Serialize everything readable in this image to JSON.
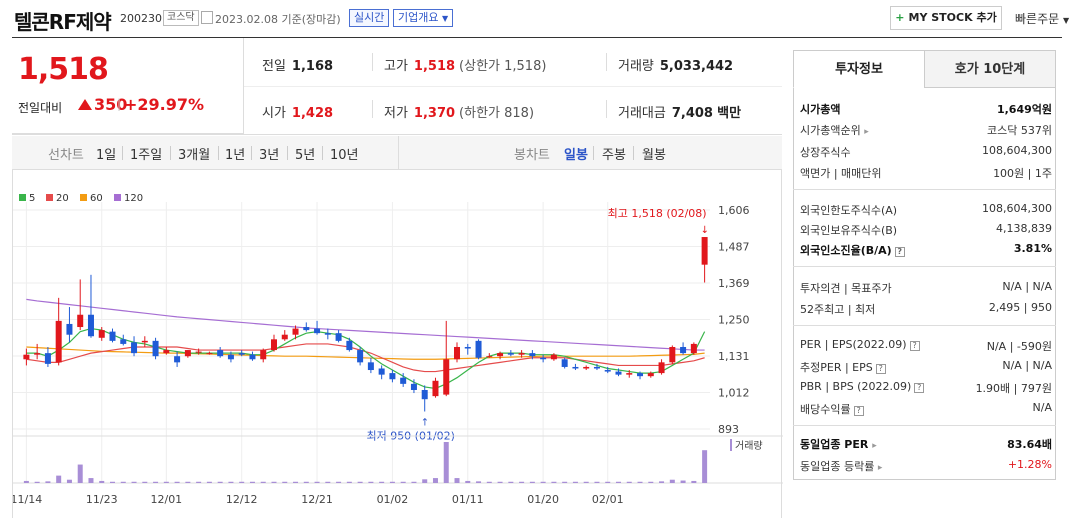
{
  "header": {
    "title": "텔콘RF제약",
    "code": "200230",
    "market": "코스닥",
    "date": "2023.02.08 기준(장마감)",
    "realtime": "실시간",
    "company_overview": "기업개요",
    "mystock": "MY STOCK 추가",
    "quick_order": "빠른주문"
  },
  "quote": {
    "price": "1,518",
    "change_label": "전일대비",
    "change": "350",
    "change_pct": "+29.97%",
    "prev_label": "전일",
    "prev": "1,168",
    "high_label": "고가",
    "high": "1,518",
    "high_sub": "(상한가 1,518)",
    "volume_label": "거래량",
    "volume": "5,033,442",
    "open_label": "시가",
    "open": "1,428",
    "low_label": "저가",
    "low": "1,370",
    "low_sub": "(하한가 818)",
    "amount_label": "거래대금",
    "amount": "7,408",
    "amount_unit": "백만"
  },
  "period_bar": {
    "line_label": "선차트",
    "line_items": [
      "1일",
      "1주일",
      "3개월",
      "1년",
      "3년",
      "5년",
      "10년"
    ],
    "candle_label": "봉차트",
    "candle_items": [
      "일봉",
      "주봉",
      "월봉"
    ],
    "active": "일봉"
  },
  "colors": {
    "up": "#e1171c",
    "down": "#1f5bd6",
    "ma5": "#39b54a",
    "ma20": "#e54b4b",
    "ma60": "#f39c12",
    "ma120": "#a66ed3",
    "volume": "#a88ed6"
  },
  "chart_data": {
    "type": "candlestick",
    "legend": [
      "5",
      "20",
      "60",
      "120"
    ],
    "y_ticks": [
      "1,606",
      "1,487",
      "1,369",
      "1,250",
      "1,131",
      "1,012",
      "893"
    ],
    "ylim": [
      893,
      1606
    ],
    "x_labels": [
      "11/14",
      "11/23",
      "12/01",
      "12/12",
      "12/21",
      "01/02",
      "01/11",
      "01/20",
      "02/01"
    ],
    "x_label_index": [
      0,
      7,
      13,
      20,
      27,
      34,
      41,
      48,
      54
    ],
    "high_annot": "최고 1,518 (02/08)",
    "low_annot": "최저 950 (01/02)",
    "volume_label": "거래량",
    "candles": [
      [
        1120,
        1155,
        1100,
        1135
      ],
      [
        1135,
        1170,
        1120,
        1140
      ],
      [
        1140,
        1160,
        1095,
        1105
      ],
      [
        1110,
        1320,
        1100,
        1245
      ],
      [
        1235,
        1290,
        1175,
        1200
      ],
      [
        1225,
        1380,
        1215,
        1265
      ],
      [
        1265,
        1395,
        1190,
        1195
      ],
      [
        1190,
        1225,
        1180,
        1215
      ],
      [
        1210,
        1220,
        1175,
        1180
      ],
      [
        1185,
        1200,
        1165,
        1170
      ],
      [
        1175,
        1195,
        1130,
        1140
      ],
      [
        1175,
        1195,
        1160,
        1180
      ],
      [
        1180,
        1190,
        1120,
        1130
      ],
      [
        1140,
        1160,
        1135,
        1150
      ],
      [
        1130,
        1145,
        1095,
        1110
      ],
      [
        1130,
        1150,
        1125,
        1150
      ],
      [
        1145,
        1155,
        1135,
        1145
      ],
      [
        1140,
        1145,
        1135,
        1140
      ],
      [
        1150,
        1160,
        1125,
        1130
      ],
      [
        1135,
        1145,
        1110,
        1120
      ],
      [
        1140,
        1150,
        1130,
        1135
      ],
      [
        1135,
        1145,
        1115,
        1120
      ],
      [
        1120,
        1155,
        1110,
        1150
      ],
      [
        1150,
        1200,
        1145,
        1185
      ],
      [
        1185,
        1215,
        1180,
        1200
      ],
      [
        1200,
        1230,
        1185,
        1220
      ],
      [
        1225,
        1240,
        1210,
        1215
      ],
      [
        1220,
        1245,
        1200,
        1205
      ],
      [
        1205,
        1220,
        1185,
        1200
      ],
      [
        1205,
        1215,
        1175,
        1180
      ],
      [
        1180,
        1190,
        1145,
        1150
      ],
      [
        1150,
        1160,
        1100,
        1110
      ],
      [
        1110,
        1125,
        1075,
        1085
      ],
      [
        1090,
        1100,
        1055,
        1070
      ],
      [
        1075,
        1085,
        1045,
        1055
      ],
      [
        1060,
        1075,
        1030,
        1040
      ],
      [
        1040,
        1055,
        1010,
        1020
      ],
      [
        1020,
        1035,
        950,
        990
      ],
      [
        1000,
        1060,
        995,
        1050
      ],
      [
        1005,
        1245,
        1000,
        1120
      ],
      [
        1120,
        1175,
        1110,
        1160
      ],
      [
        1160,
        1170,
        1135,
        1155
      ],
      [
        1180,
        1185,
        1120,
        1125
      ],
      [
        1130,
        1140,
        1125,
        1130
      ],
      [
        1130,
        1145,
        1120,
        1140
      ],
      [
        1140,
        1150,
        1130,
        1135
      ],
      [
        1135,
        1150,
        1125,
        1140
      ],
      [
        1140,
        1150,
        1120,
        1130
      ],
      [
        1125,
        1135,
        1110,
        1120
      ],
      [
        1120,
        1140,
        1115,
        1135
      ],
      [
        1120,
        1125,
        1090,
        1095
      ],
      [
        1095,
        1105,
        1085,
        1090
      ],
      [
        1090,
        1100,
        1085,
        1095
      ],
      [
        1095,
        1105,
        1085,
        1090
      ],
      [
        1085,
        1095,
        1075,
        1080
      ],
      [
        1080,
        1090,
        1065,
        1070
      ],
      [
        1070,
        1085,
        1060,
        1075
      ],
      [
        1075,
        1080,
        1055,
        1065
      ],
      [
        1065,
        1080,
        1060,
        1075
      ],
      [
        1075,
        1120,
        1070,
        1110
      ],
      [
        1110,
        1165,
        1105,
        1160
      ],
      [
        1160,
        1175,
        1135,
        1140
      ],
      [
        1140,
        1175,
        1135,
        1170
      ],
      [
        1428,
        1518,
        1370,
        1518
      ]
    ],
    "ma5": [
      1140,
      1140,
      1130,
      1150,
      1175,
      1210,
      1220,
      1215,
      1200,
      1185,
      1175,
      1170,
      1160,
      1150,
      1145,
      1140,
      1140,
      1140,
      1140,
      1140,
      1140,
      1135,
      1135,
      1150,
      1170,
      1190,
      1205,
      1210,
      1205,
      1200,
      1185,
      1160,
      1130,
      1105,
      1085,
      1065,
      1045,
      1030,
      1025,
      1040,
      1060,
      1085,
      1110,
      1130,
      1140,
      1140,
      1140,
      1135,
      1135,
      1135,
      1130,
      1120,
      1110,
      1100,
      1090,
      1085,
      1080,
      1075,
      1075,
      1080,
      1100,
      1120,
      1140,
      1210
    ],
    "ma20": [
      1120,
      1115,
      1110,
      1110,
      1120,
      1130,
      1140,
      1145,
      1150,
      1155,
      1160,
      1160,
      1160,
      1160,
      1160,
      1155,
      1150,
      1150,
      1150,
      1150,
      1150,
      1150,
      1150,
      1155,
      1160,
      1165,
      1170,
      1170,
      1170,
      1165,
      1160,
      1150,
      1140,
      1125,
      1110,
      1095,
      1085,
      1080,
      1080,
      1085,
      1090,
      1095,
      1100,
      1105,
      1110,
      1115,
      1120,
      1125,
      1125,
      1125,
      1125,
      1120,
      1115,
      1110,
      1105,
      1100,
      1100,
      1100,
      1100,
      1100,
      1105,
      1110,
      1115,
      1125
    ],
    "ma60": [
      1160,
      1158,
      1156,
      1154,
      1152,
      1150,
      1148,
      1146,
      1145,
      1144,
      1143,
      1142,
      1141,
      1140,
      1140,
      1139,
      1138,
      1137,
      1136,
      1135,
      1134,
      1133,
      1132,
      1131,
      1130,
      1130,
      1130,
      1129,
      1128,
      1127,
      1126,
      1125,
      1124,
      1123,
      1122,
      1121,
      1120,
      1120,
      1120,
      1121,
      1122,
      1123,
      1124,
      1125,
      1126,
      1127,
      1128,
      1129,
      1130,
      1130,
      1130,
      1130,
      1130,
      1130,
      1130,
      1130,
      1130,
      1131,
      1132,
      1133,
      1134,
      1135,
      1136,
      1140
    ],
    "ma120": [
      1315,
      1310,
      1306,
      1302,
      1298,
      1294,
      1290,
      1286,
      1282,
      1278,
      1274,
      1270,
      1266,
      1262,
      1258,
      1255,
      1252,
      1249,
      1246,
      1243,
      1240,
      1237,
      1234,
      1231,
      1228,
      1225,
      1222,
      1220,
      1218,
      1216,
      1214,
      1212,
      1210,
      1208,
      1206,
      1204,
      1202,
      1200,
      1198,
      1196,
      1194,
      1192,
      1190,
      1188,
      1186,
      1184,
      1182,
      1180,
      1178,
      1176,
      1174,
      1172,
      1170,
      1168,
      1166,
      1164,
      1162,
      1160,
      1158,
      1156,
      1154,
      1152,
      1150,
      1150
    ],
    "volumes": [
      5,
      3,
      4,
      18,
      8,
      45,
      12,
      5,
      3,
      3,
      3,
      3,
      3,
      3,
      3,
      3,
      3,
      3,
      3,
      3,
      3,
      3,
      3,
      3,
      3,
      3,
      3,
      3,
      3,
      3,
      3,
      3,
      3,
      3,
      3,
      3,
      3,
      9,
      12,
      100,
      12,
      5,
      4,
      3,
      3,
      3,
      3,
      3,
      3,
      3,
      3,
      3,
      3,
      3,
      3,
      3,
      3,
      3,
      3,
      4,
      8,
      6,
      5,
      80
    ]
  },
  "right_panel": {
    "tab_invest": "투자정보",
    "tab_orderbook": "호가 10단계",
    "market_cap_label": "시가총액",
    "market_cap": "1,649억원",
    "market_cap_rank_label": "시가총액순위",
    "market_cap_rank": "코스닥 537위",
    "shares_label": "상장주식수",
    "shares": "108,604,300",
    "face_label": "액면가 | 매매단위",
    "face": "100원 | 1주",
    "foreign_limit_label": "외국인한도주식수(A)",
    "foreign_limit": "108,604,300",
    "foreign_hold_label": "외국인보유주식수(B)",
    "foreign_hold": "4,138,839",
    "foreign_ratio_label": "외국인소진율(B/A)",
    "foreign_ratio": "3.81%",
    "opinion_label": "투자의견 | 목표주가",
    "opinion": "N/A | N/A",
    "week52_label": "52주최고 | 최저",
    "week52": "2,495 | 950",
    "per_label": "PER | EPS(2022.09)",
    "per": "N/A | -590원",
    "est_per_label": "추정PER | EPS",
    "est_per": "N/A | N/A",
    "pbr_label": "PBR | BPS (2022.09)",
    "pbr": "1.90배 | 797원",
    "dividend_label": "배당수익률",
    "dividend": "N/A",
    "sector_per_label": "동일업종 PER",
    "sector_per": "83.64배",
    "sector_change_label": "동일업종 등락률",
    "sector_change": "+1.28%"
  }
}
